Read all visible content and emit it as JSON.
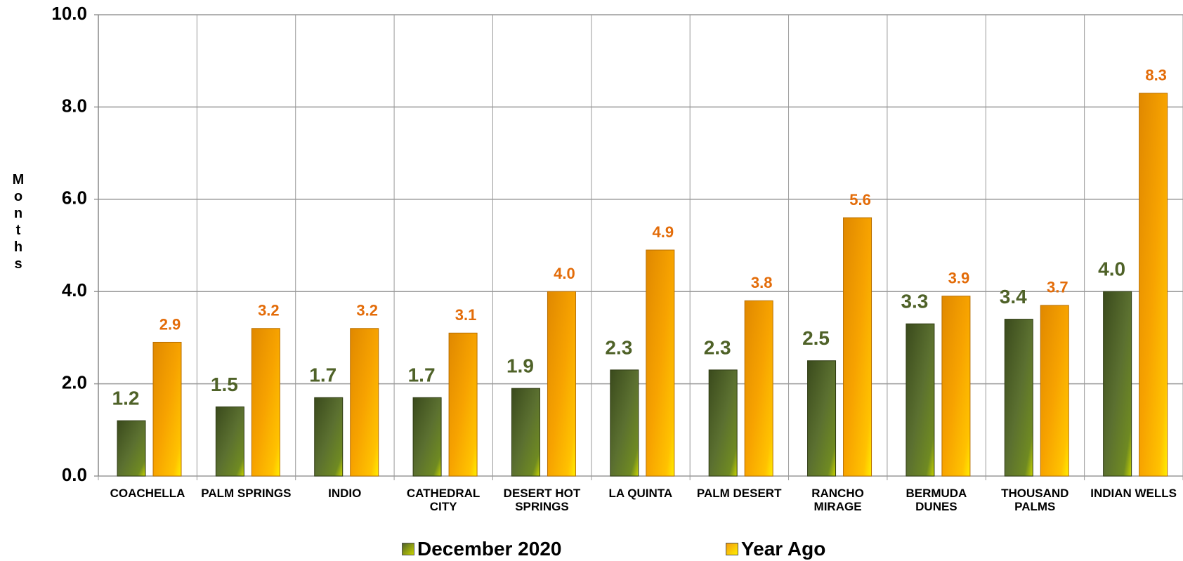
{
  "chart_data": {
    "type": "bar",
    "y_label": "Months",
    "categories": [
      "COACHELLA",
      "PALM SPRINGS",
      "INDIO",
      "CATHEDRAL CITY",
      "DESERT HOT SPRINGS",
      "LA QUINTA",
      "PALM DESERT",
      "RANCHO MIRAGE",
      "BERMUDA DUNES",
      "THOUSAND PALMS",
      "INDIAN WELLS"
    ],
    "series": [
      {
        "name": "December 2020",
        "color": "#4f6228",
        "values": [
          1.2,
          1.5,
          1.7,
          1.7,
          1.9,
          2.3,
          2.3,
          2.5,
          3.3,
          3.4,
          4.0
        ],
        "value_labels": [
          "1.2",
          "1.5",
          "1.7",
          "1.7",
          "1.9",
          "2.3",
          "2.3",
          "2.5",
          "3.3",
          "3.4",
          "4.0"
        ]
      },
      {
        "name": "Year Ago",
        "color": "#f39c12",
        "values": [
          2.9,
          3.2,
          3.2,
          3.1,
          4.0,
          4.9,
          3.8,
          5.6,
          3.9,
          3.7,
          8.3
        ],
        "value_labels": [
          "2.9",
          "3.2",
          "3.2",
          "3.1",
          "4.0",
          "4.9",
          "3.8",
          "5.6",
          "3.9",
          "3.7",
          "8.3"
        ]
      }
    ],
    "ylim": [
      0,
      10
    ],
    "yticks": [
      {
        "value": 0,
        "label": "0.0"
      },
      {
        "value": 2,
        "label": "2.0"
      },
      {
        "value": 4,
        "label": "4.0"
      },
      {
        "value": 6,
        "label": "6.0"
      },
      {
        "value": 8,
        "label": "8.0"
      },
      {
        "value": 10,
        "label": "10.0"
      }
    ],
    "grid": true,
    "legend": "bottom"
  }
}
